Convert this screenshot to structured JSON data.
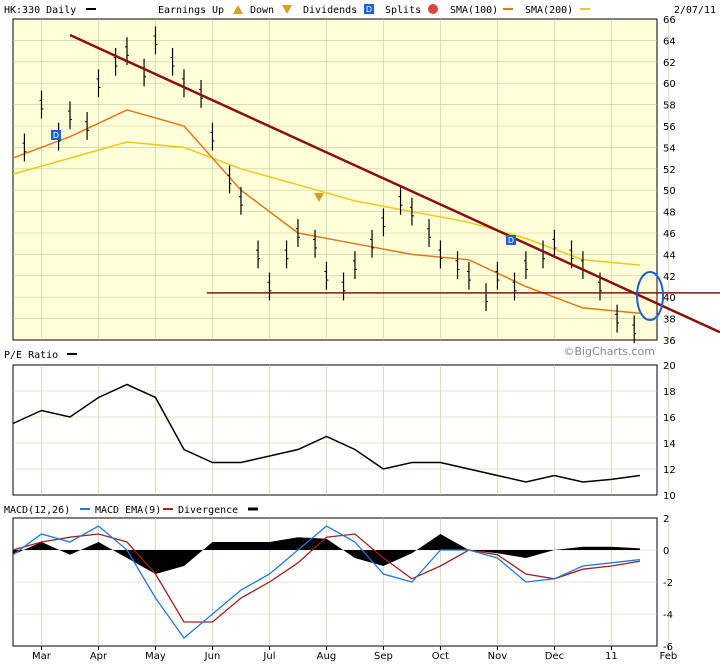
{
  "header": {
    "ticker_label": "HK:330 Daily",
    "earnings_label": "Earnings",
    "up_label": "Up",
    "down_label": "Down",
    "dividends_label": "Dividends",
    "splits_label": "Splits",
    "sma100_label": "SMA(100)",
    "sma200_label": "SMA(200)",
    "date": "2/07/11"
  },
  "colors": {
    "panel_bg": "#ffffd8",
    "grid": "#c8c8a0",
    "price": "#000000",
    "sma100": "#e07818",
    "sma200": "#f0c818",
    "trendline": "#8b1010",
    "support": "#8b1010",
    "highlight": "#1f5fd0",
    "macd": "#1f78e0",
    "macd_ema": "#a02020",
    "divergence": "#000000",
    "earnings_up": "#d4a020",
    "earnings_down": "#d4a020",
    "dividend": "#2060d0",
    "split": "#e04040"
  },
  "watermark": "©BigCharts.com",
  "x_axis": {
    "months": [
      "Mar",
      "Apr",
      "May",
      "Jun",
      "Jul",
      "Aug",
      "Sep",
      "Oct",
      "Nov",
      "Dec",
      "11",
      "Feb"
    ]
  },
  "chart_data": [
    {
      "type": "line",
      "panel": "price",
      "ylim": [
        36,
        66
      ],
      "yticks": [
        36,
        38,
        40,
        42,
        44,
        46,
        48,
        50,
        52,
        54,
        56,
        58,
        60,
        62,
        64,
        66
      ],
      "dividend_marker": "D",
      "series": [
        {
          "name": "HK:330 Daily",
          "style": "ohlc",
          "x": [
            0.2,
            0.5,
            0.8,
            1.0,
            1.3,
            1.5,
            1.8,
            2.0,
            2.3,
            2.5,
            2.8,
            3.0,
            3.3,
            3.5,
            3.8,
            4.0,
            4.3,
            4.5,
            4.8,
            5.0,
            5.3,
            5.5,
            5.8,
            6.0,
            6.3,
            6.5,
            6.8,
            7.0,
            7.3,
            7.5,
            7.8,
            8.0,
            8.3,
            8.5,
            8.8,
            9.0,
            9.3,
            9.5,
            9.8,
            10.0,
            10.3,
            10.6,
            10.9
          ],
          "values": [
            54,
            58,
            55,
            57,
            56,
            60,
            62,
            63,
            61,
            64,
            62,
            60,
            59,
            55,
            51,
            49,
            44,
            41,
            44,
            46,
            45,
            42,
            41,
            43,
            45,
            47,
            49,
            48,
            46,
            44,
            43,
            42,
            40,
            42,
            41,
            43,
            44,
            45,
            44,
            43,
            41,
            38,
            37
          ]
        },
        {
          "name": "SMA(100)",
          "x": [
            0,
            1,
            2,
            3,
            4,
            5,
            6,
            7,
            8,
            9,
            10,
            11
          ],
          "values": [
            53,
            55,
            57.5,
            56,
            50,
            46,
            45,
            44,
            43.5,
            41,
            39,
            38.5
          ]
        },
        {
          "name": "SMA(200)",
          "x": [
            0,
            1,
            2,
            3,
            4,
            5,
            6,
            7,
            8,
            9,
            10,
            11
          ],
          "values": [
            51.5,
            53,
            54.5,
            54,
            52,
            50.5,
            49,
            48,
            47,
            45.5,
            43.5,
            43
          ]
        }
      ],
      "trendline": {
        "from": [
          1.0,
          64.5
        ],
        "to": [
          11.3,
          37
        ]
      },
      "support_line": {
        "from": [
          3.4,
          40.4
        ],
        "to": [
          11.3,
          40.4
        ]
      }
    },
    {
      "type": "line",
      "panel": "pe",
      "title": "P/E Ratio",
      "ylim": [
        10,
        20
      ],
      "yticks": [
        10,
        12,
        14,
        16,
        18,
        20
      ],
      "series": [
        {
          "name": "P/E Ratio",
          "x": [
            0,
            0.5,
            1.0,
            1.5,
            2.0,
            2.5,
            3.0,
            3.5,
            4.0,
            4.5,
            5.0,
            5.5,
            6.0,
            6.5,
            7.0,
            7.5,
            8.0,
            8.5,
            9.0,
            9.5,
            10.0,
            10.5,
            11.0
          ],
          "values": [
            15.5,
            16.5,
            16,
            17.5,
            18.5,
            17.5,
            13.5,
            12.5,
            12.5,
            13,
            13.5,
            14.5,
            13.5,
            12,
            12.5,
            12.5,
            12,
            11.5,
            11,
            11.5,
            11,
            11.2,
            11.5
          ]
        }
      ]
    },
    {
      "type": "line",
      "panel": "macd",
      "title": "MACD(12,26)",
      "ylim": [
        -6,
        2
      ],
      "yticks": [
        -6,
        -4,
        -2,
        0,
        2
      ],
      "legend": [
        "MACD(12,26)",
        "MACD EMA(9)",
        "Divergence"
      ],
      "series": [
        {
          "name": "MACD(12,26)",
          "x": [
            0,
            0.5,
            1.0,
            1.5,
            2.0,
            2.5,
            3.0,
            3.5,
            4.0,
            4.5,
            5.0,
            5.5,
            6.0,
            6.5,
            7.0,
            7.5,
            8.0,
            8.5,
            9.0,
            9.5,
            10.0,
            10.5,
            11.0
          ],
          "values": [
            -0.3,
            1,
            0.5,
            1.5,
            0,
            -3,
            -5.5,
            -4,
            -2.5,
            -1.5,
            0,
            1.5,
            0.5,
            -1.5,
            -2,
            0,
            0,
            -0.5,
            -2,
            -1.8,
            -1,
            -0.8,
            -0.6
          ]
        },
        {
          "name": "MACD EMA(9)",
          "x": [
            0,
            0.5,
            1.0,
            1.5,
            2.0,
            2.5,
            3.0,
            3.5,
            4.0,
            4.5,
            5.0,
            5.5,
            6.0,
            6.5,
            7.0,
            7.5,
            8.0,
            8.5,
            9.0,
            9.5,
            10.0,
            10.5,
            11.0
          ],
          "values": [
            0,
            0.5,
            0.8,
            1,
            0.5,
            -1.5,
            -4.5,
            -4.5,
            -3,
            -2,
            -0.8,
            0.8,
            1,
            -0.5,
            -1.8,
            -1,
            0,
            -0.3,
            -1.5,
            -1.8,
            -1.2,
            -1,
            -0.7
          ]
        },
        {
          "name": "Divergence",
          "style": "area",
          "x": [
            0,
            0.5,
            1.0,
            1.5,
            2.0,
            2.5,
            3.0,
            3.5,
            4.0,
            4.5,
            5.0,
            5.5,
            6.0,
            6.5,
            7.0,
            7.5,
            8.0,
            8.5,
            9.0,
            9.5,
            10.0,
            10.5,
            11.0
          ],
          "values": [
            -0.3,
            0.5,
            -0.3,
            0.5,
            -0.5,
            -1.5,
            -1,
            0.5,
            0.5,
            0.5,
            0.8,
            0.7,
            -0.5,
            -1,
            -0.2,
            1,
            0,
            -0.2,
            -0.5,
            0,
            0.2,
            0.2,
            0.1
          ]
        }
      ]
    }
  ]
}
